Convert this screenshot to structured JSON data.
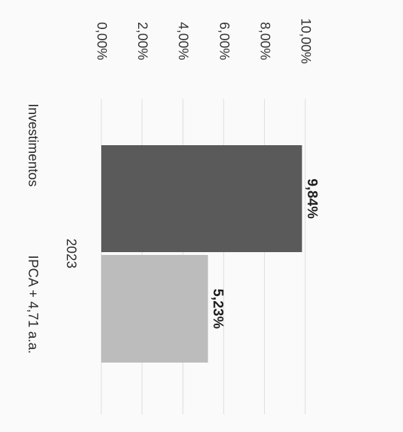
{
  "chart_data": {
    "type": "bar",
    "orientation": "rotated-90",
    "group_label": "2023",
    "categories": [
      "Investimentos",
      "IPCA + 4,71 a.a."
    ],
    "values": [
      9.84,
      5.23
    ],
    "data_labels": [
      "9,84%",
      "5,23%"
    ],
    "ylim": [
      0,
      10
    ],
    "y_ticks": [
      "0,00%",
      "2,00%",
      "4,00%",
      "6,00%",
      "8,00%",
      "10,00%"
    ],
    "grid": true,
    "legend": "none",
    "colors": [
      "#5a5a5a",
      "#bcbcbc"
    ]
  }
}
